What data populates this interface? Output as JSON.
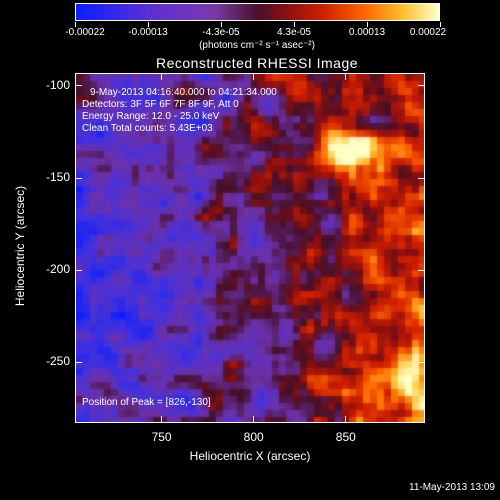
{
  "colorbar": {
    "tick_labels": [
      "-0.00022",
      "-0.00013",
      "-4.3e-05",
      "4.3e-05",
      "0.00013",
      "0.00022"
    ],
    "units": "(photons cm⁻² s⁻¹ asec⁻²)"
  },
  "title": "Reconstructed RHESSI Image",
  "annotations": {
    "time": "9-May-2013 04:16:40.000 to 04:21:34.000",
    "detectors": "Detectors: 3F 5F 6F 7F 8F 9F, Att 0",
    "energy": "Energy Range: 12.0 - 25.0 keV",
    "clean": "Clean     Total counts: 5.43E+03",
    "peak": "Position of Peak = [826,-130]"
  },
  "footer": {
    "date": "11-May-2013 13:09"
  },
  "chart_data": {
    "type": "heatmap",
    "title": "Reconstructed RHESSI Image",
    "xlabel": "Heliocentric X (arcsec)",
    "ylabel": "Heliocentric Y (arcsec)",
    "xlim": [
      703,
      893
    ],
    "ylim": [
      -283,
      -93
    ],
    "x_ticks": [
      750,
      800,
      850
    ],
    "y_ticks": [
      -100,
      -150,
      -200,
      -250
    ],
    "x_tick_labels": [
      "750",
      "800",
      "850"
    ],
    "y_tick_labels": [
      "-100",
      "-150",
      "-200",
      "-250"
    ],
    "colorbar_range": [
      -0.00022,
      0.00022
    ],
    "peak": {
      "x": 826,
      "y": -130
    }
  }
}
